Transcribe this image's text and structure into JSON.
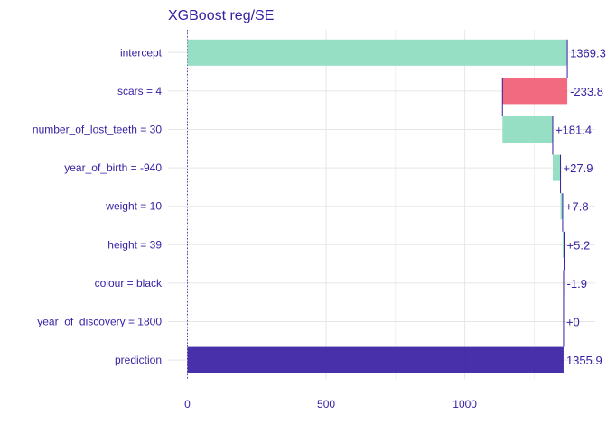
{
  "chart_data": {
    "type": "bar",
    "subtype": "waterfall-break-down",
    "title": "XGBoost reg/SE",
    "categories": [
      "intercept",
      "scars = 4",
      "number_of_lost_teeth = 30",
      "year_of_birth = -940",
      "weight = 10",
      "height = 39",
      "colour = black",
      "year_of_discovery = 1800",
      "prediction"
    ],
    "bars": [
      {
        "start": 0,
        "end": 1369.3,
        "label": "1369.3"
      },
      {
        "start": 1369.3,
        "end": 1135.5,
        "label": "-233.8"
      },
      {
        "start": 1135.5,
        "end": 1316.9,
        "label": "+181.4"
      },
      {
        "start": 1316.9,
        "end": 1344.8,
        "label": "+27.9"
      },
      {
        "start": 1344.8,
        "end": 1352.6,
        "label": "+7.8"
      },
      {
        "start": 1352.6,
        "end": 1357.8,
        "label": "+5.2"
      },
      {
        "start": 1357.8,
        "end": 1355.9,
        "label": "-1.9"
      },
      {
        "start": 1355.9,
        "end": 1355.9,
        "label": "+0"
      },
      {
        "start": 0,
        "end": 1355.9,
        "label": "1355.9"
      }
    ],
    "xlim": [
      -70,
      1470
    ],
    "xticks": [
      0,
      500,
      1000
    ],
    "grid": true,
    "colors": {
      "positive": "#8bdcbe",
      "negative": "#f05a71",
      "prediction": "#371ea3",
      "connector": "#371ea3",
      "text": "#371ea3",
      "grid": "#e6e6e6",
      "baseline": "#371ea3"
    }
  }
}
